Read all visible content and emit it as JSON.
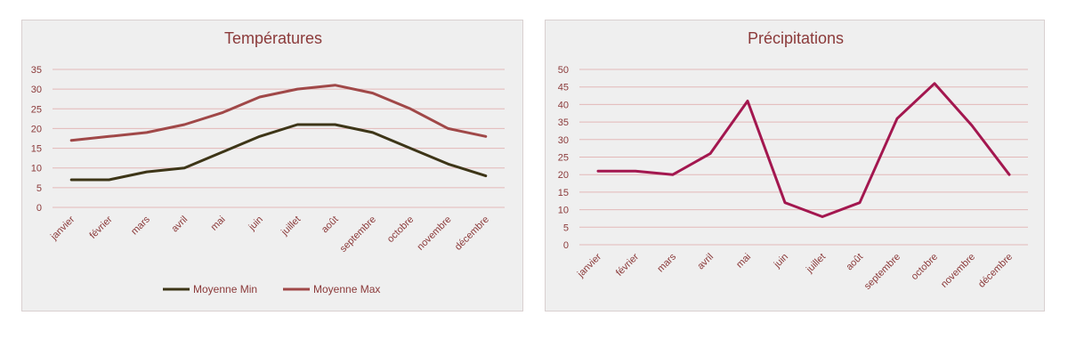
{
  "chart_data": [
    {
      "type": "line",
      "title": "Températures",
      "xlabel": "",
      "ylabel": "",
      "categories": [
        "janvier",
        "février",
        "mars",
        "avril",
        "mai",
        "juin",
        "juillet",
        "août",
        "septembre",
        "octobre",
        "novembre",
        "décembre"
      ],
      "ylim": [
        0,
        35
      ],
      "yticks": [
        0,
        5,
        10,
        15,
        20,
        25,
        30,
        35
      ],
      "grid": true,
      "legend": "bottom",
      "series": [
        {
          "name": "Moyenne Min",
          "color": "#3d3517",
          "values": [
            7,
            7,
            9,
            10,
            14,
            18,
            21,
            21,
            19,
            15,
            11,
            8
          ]
        },
        {
          "name": "Moyenne Max",
          "color": "#a04848",
          "values": [
            17,
            18,
            19,
            21,
            24,
            28,
            30,
            31,
            29,
            25,
            20,
            18
          ]
        }
      ]
    },
    {
      "type": "line",
      "title": "Précipitations",
      "xlabel": "",
      "ylabel": "",
      "categories": [
        "janvier",
        "février",
        "mars",
        "avril",
        "mai",
        "juin",
        "juillet",
        "août",
        "septembre",
        "octobre",
        "novembre",
        "décembre"
      ],
      "ylim": [
        0,
        50
      ],
      "yticks": [
        0,
        5,
        10,
        15,
        20,
        25,
        30,
        35,
        40,
        45,
        50
      ],
      "grid": true,
      "legend": "none",
      "series": [
        {
          "color": "#a3174f",
          "values": [
            21,
            21,
            20,
            26,
            41,
            12,
            8,
            12,
            36,
            46,
            34,
            20
          ]
        }
      ]
    }
  ]
}
